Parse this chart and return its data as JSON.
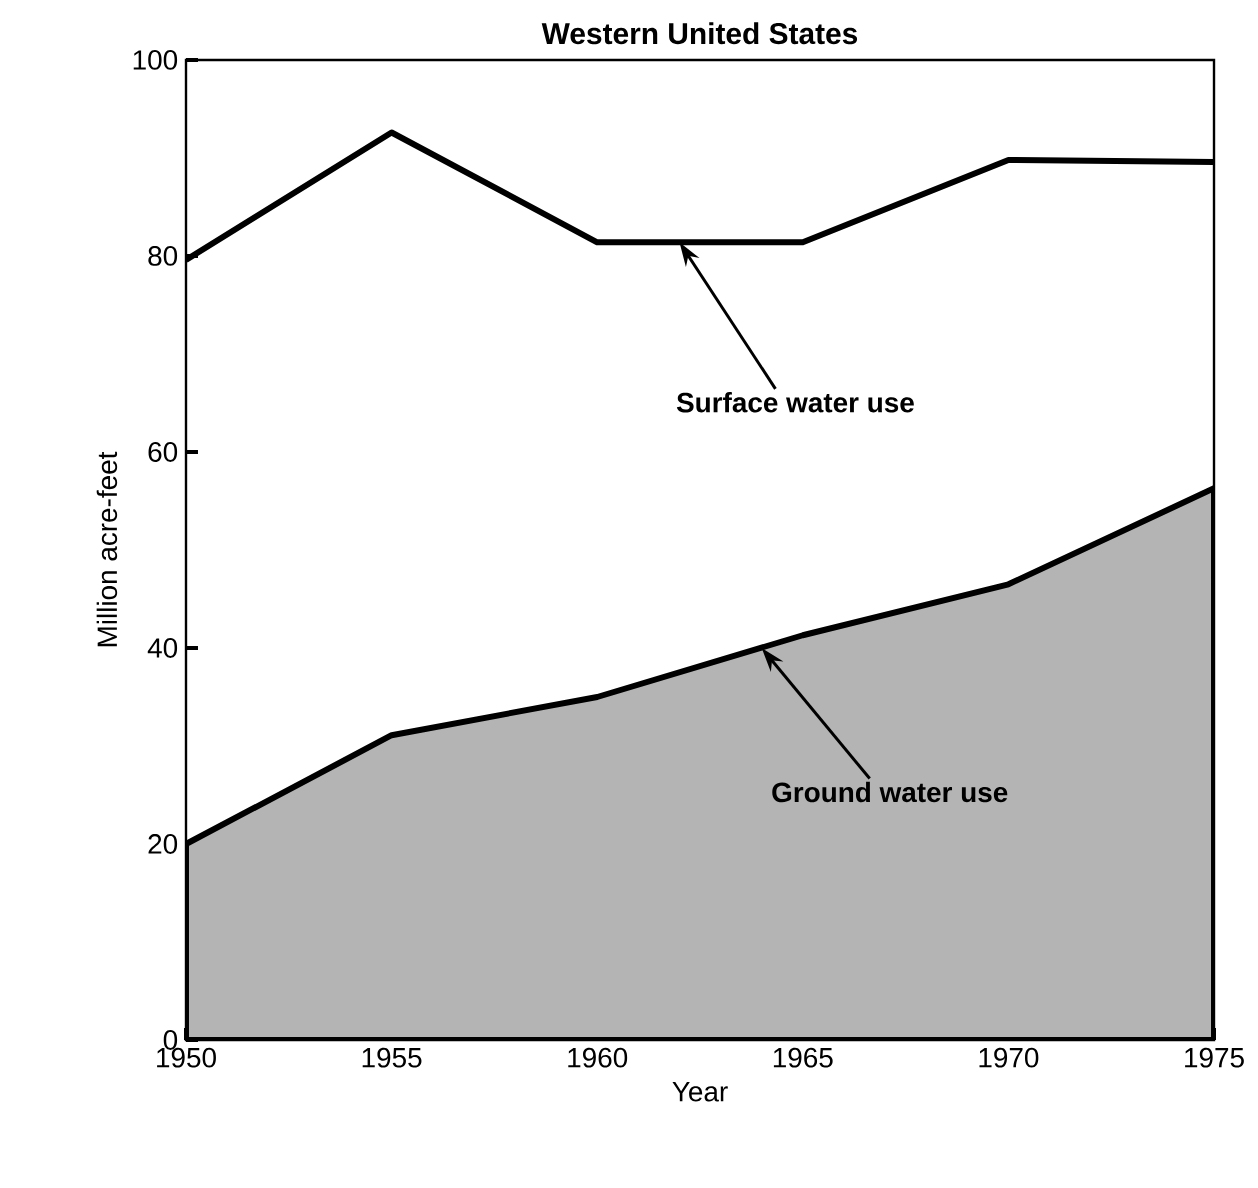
{
  "chart_data": {
    "type": "line",
    "title": "Western United States",
    "xlabel": "Year",
    "ylabel": "Million acre-feet",
    "x": [
      1950,
      1955,
      1960,
      1965,
      1970,
      1975
    ],
    "series": [
      {
        "color": "#000000",
        "values": [
          79.6,
          92.6,
          81.4,
          81.4,
          89.8,
          89.6
        ]
      },
      {
        "type": "area",
        "color": "#b4b4b4",
        "values": [
          20,
          31.1,
          35,
          41.3,
          46.5,
          56.3
        ]
      }
    ],
    "annotations": [
      {
        "text": "Surface water use",
        "x": 1962,
        "y": 81.4
      },
      {
        "text": "Ground water use",
        "x": 1964,
        "y": 40
      }
    ],
    "xlim": [
      1950,
      1975
    ],
    "ylim": [
      0,
      100
    ],
    "xticks": [
      1950,
      1955,
      1960,
      1965,
      1970,
      1975
    ],
    "yticks": [
      0,
      20,
      40,
      60,
      80,
      100
    ],
    "grid": false
  }
}
